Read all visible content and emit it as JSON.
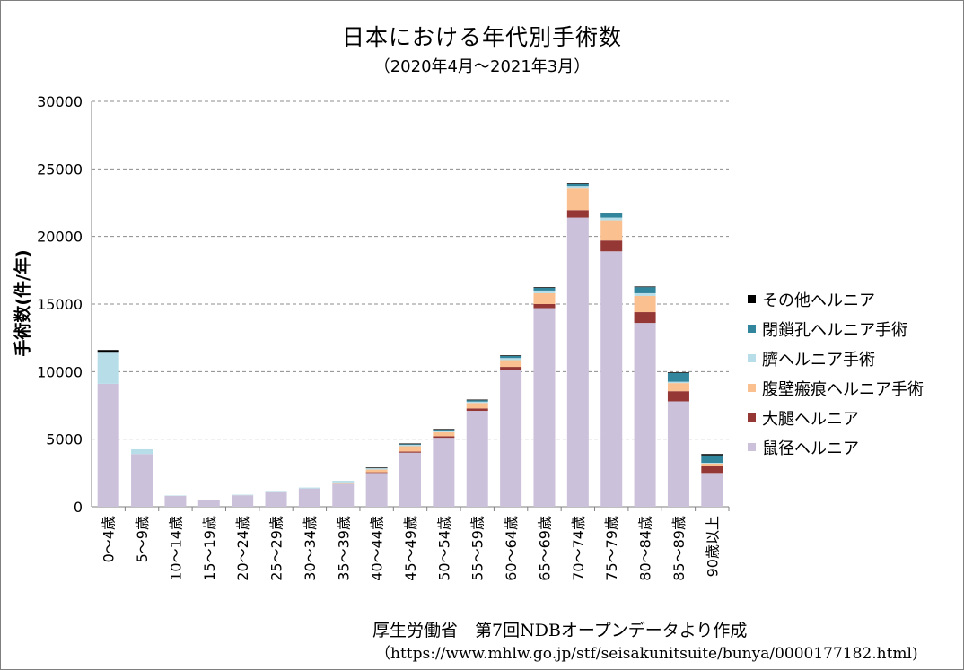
{
  "chart_data": {
    "type": "bar",
    "stacked": true,
    "title": "日本における年代別手術数",
    "subtitle": "（2020年4月〜2021年3月）",
    "ylabel": "手術数(件/年)",
    "xlabel": "",
    "ylim": [
      0,
      30000
    ],
    "yticks": [
      0,
      5000,
      10000,
      15000,
      20000,
      25000,
      30000
    ],
    "grid": true,
    "legend_position": "right",
    "categories": [
      "0〜4歳",
      "5〜9歳",
      "10〜14歳",
      "15〜19歳",
      "20〜24歳",
      "25〜29歳",
      "30〜34歳",
      "35〜39歳",
      "40〜44歳",
      "45〜49歳",
      "50〜54歳",
      "55〜59歳",
      "60〜64歳",
      "65〜69歳",
      "70〜74歳",
      "75〜79歳",
      "80〜84歳",
      "85〜89歳",
      "90歳以上"
    ],
    "series": [
      {
        "name": "鼠径ヘルニア",
        "color": "#ccc1da",
        "values": [
          9100,
          3900,
          800,
          500,
          850,
          1120,
          1350,
          1700,
          2500,
          4000,
          5100,
          7100,
          10100,
          14700,
          21400,
          18900,
          13600,
          7800,
          2500
        ]
      },
      {
        "name": "大腿ヘルニア",
        "color": "#953735",
        "values": [
          0,
          0,
          0,
          0,
          0,
          0,
          0,
          0,
          50,
          80,
          120,
          180,
          250,
          300,
          550,
          800,
          800,
          750,
          550
        ]
      },
      {
        "name": "腹壁瘢痕ヘルニア手術",
        "color": "#fac090",
        "values": [
          0,
          0,
          0,
          0,
          0,
          0,
          0,
          100,
          200,
          400,
          300,
          400,
          500,
          800,
          1600,
          1500,
          1200,
          600,
          150
        ]
      },
      {
        "name": "臍ヘルニア手術",
        "color": "#b7dee8",
        "values": [
          2300,
          350,
          30,
          20,
          40,
          50,
          70,
          120,
          100,
          100,
          100,
          100,
          150,
          200,
          200,
          200,
          200,
          100,
          50
        ]
      },
      {
        "name": "閉鎖孔ヘルニア手術",
        "color": "#31859c",
        "values": [
          0,
          0,
          0,
          0,
          0,
          0,
          0,
          0,
          0,
          50,
          80,
          100,
          150,
          200,
          150,
          300,
          450,
          650,
          550
        ]
      },
      {
        "name": "その他ヘルニア",
        "color": "#000000",
        "values": [
          200,
          0,
          0,
          0,
          0,
          0,
          0,
          0,
          50,
          50,
          50,
          50,
          50,
          50,
          50,
          50,
          50,
          50,
          100
        ]
      }
    ]
  },
  "source": {
    "line1": "厚生労働省　第7回NDBオープンデータより作成",
    "line2": "（https://www.mhlw.go.jp/stf/seisakunitsuite/bunya/0000177182.html)"
  }
}
